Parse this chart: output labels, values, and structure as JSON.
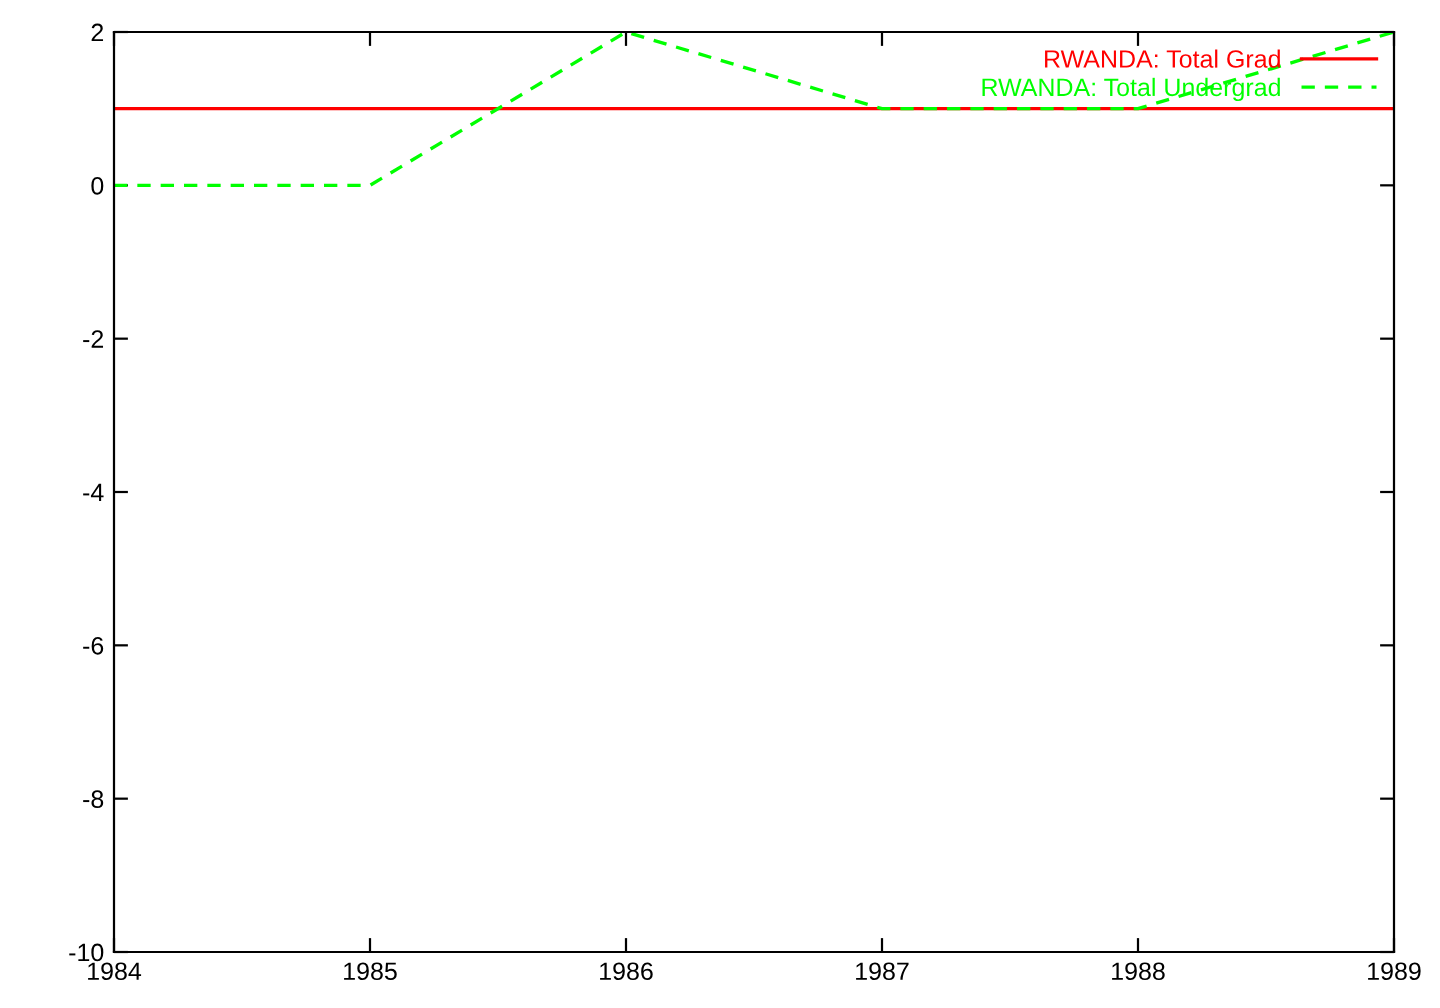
{
  "chart_data": {
    "type": "line",
    "x": [
      1984,
      1985,
      1986,
      1987,
      1988,
      1989
    ],
    "series": [
      {
        "name": "RWANDA: Total Grad",
        "color": "#ff0000",
        "values": [
          1,
          1,
          1,
          1,
          1,
          1
        ],
        "line_style": "solid"
      },
      {
        "name": "RWANDA: Total Undergrad",
        "color": "#00ff00",
        "values": [
          0,
          0,
          2,
          1,
          1,
          2
        ],
        "line_style": "dashed"
      }
    ],
    "xlim": [
      1984,
      1989
    ],
    "xticks": [
      1984,
      1985,
      1986,
      1987,
      1988,
      1989
    ],
    "ylim": [
      -10,
      2
    ],
    "yticks": [
      -10,
      -8,
      -6,
      -4,
      -2,
      0,
      2
    ],
    "grid": false,
    "legend": "top right",
    "marker": "none"
  }
}
